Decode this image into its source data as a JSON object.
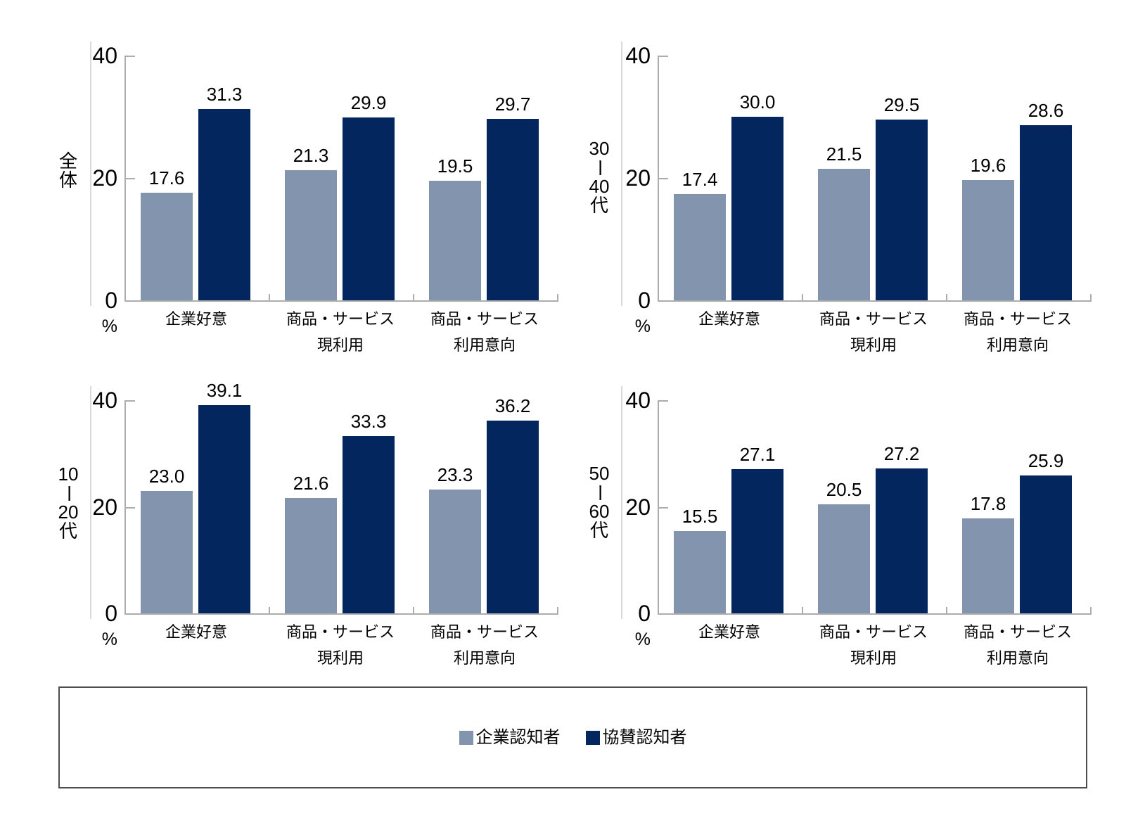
{
  "colors": {
    "series1": "#8394AE",
    "series2": "#03265E",
    "axis_line": "#ADADAD",
    "panel_edge": "#D9D9D9",
    "text": "#000000",
    "legend_border": "#4D4D4D",
    "background": "#FFFFFF"
  },
  "axis": {
    "unit_label": "%",
    "ylim": [
      0,
      40
    ],
    "ticks": [
      {
        "value": 40,
        "label": "40"
      },
      {
        "value": 20,
        "label": "20"
      },
      {
        "value": 0,
        "label": "0"
      }
    ]
  },
  "categories_lines": [
    [
      "企業好意"
    ],
    [
      "商品・サービス",
      "現利用"
    ],
    [
      "商品・サービス",
      "利用意向"
    ]
  ],
  "legend": {
    "position": "bottom",
    "items": [
      {
        "label": "企業認知者",
        "color_key": "series1"
      },
      {
        "label": "協賛認知者",
        "color_key": "series2"
      }
    ]
  },
  "chart_data": [
    {
      "type": "bar",
      "title": "全体",
      "title_lines": [
        "全",
        "体"
      ],
      "categories": [
        "企業好意",
        "商品・サービス 現利用",
        "商品・サービス 利用意向"
      ],
      "ylabel": "%",
      "ylim": [
        0,
        40
      ],
      "grid": false,
      "series": [
        {
          "name": "企業認知者",
          "values": [
            17.6,
            21.3,
            19.5
          ],
          "labels": [
            "17.6",
            "21.3",
            "19.5"
          ]
        },
        {
          "name": "協賛認知者",
          "values": [
            31.3,
            29.9,
            29.7
          ],
          "labels": [
            "31.3",
            "29.9",
            "29.7"
          ]
        }
      ]
    },
    {
      "type": "bar",
      "title": "30ー40代",
      "title_lines": [
        "30",
        "ー",
        "40",
        "代"
      ],
      "categories": [
        "企業好意",
        "商品・サービス 現利用",
        "商品・サービス 利用意向"
      ],
      "ylabel": "%",
      "ylim": [
        0,
        40
      ],
      "grid": false,
      "series": [
        {
          "name": "企業認知者",
          "values": [
            17.4,
            21.5,
            19.6
          ],
          "labels": [
            "17.4",
            "21.5",
            "19.6"
          ]
        },
        {
          "name": "協賛認知者",
          "values": [
            30.0,
            29.5,
            28.6
          ],
          "labels": [
            "30.0",
            "29.5",
            "28.6"
          ]
        }
      ]
    },
    {
      "type": "bar",
      "title": "10ー20代",
      "title_lines": [
        "10",
        "ー",
        "20",
        "代"
      ],
      "categories": [
        "企業好意",
        "商品・サービス 現利用",
        "商品・サービス 利用意向"
      ],
      "ylabel": "%",
      "ylim": [
        0,
        40
      ],
      "grid": false,
      "series": [
        {
          "name": "企業認知者",
          "values": [
            23.0,
            21.6,
            23.3
          ],
          "labels": [
            "23.0",
            "21.6",
            "23.3"
          ]
        },
        {
          "name": "協賛認知者",
          "values": [
            39.1,
            33.3,
            36.2
          ],
          "labels": [
            "39.1",
            "33.3",
            "36.2"
          ]
        }
      ]
    },
    {
      "type": "bar",
      "title": "50ー60代",
      "title_lines": [
        "50",
        "ー",
        "60",
        "代"
      ],
      "categories": [
        "企業好意",
        "商品・サービス 現利用",
        "商品・サービス 利用意向"
      ],
      "ylabel": "%",
      "ylim": [
        0,
        40
      ],
      "grid": false,
      "series": [
        {
          "name": "企業認知者",
          "values": [
            15.5,
            20.5,
            17.8
          ],
          "labels": [
            "15.5",
            "20.5",
            "17.8"
          ]
        },
        {
          "name": "協賛認知者",
          "values": [
            27.1,
            27.2,
            25.9
          ],
          "labels": [
            "27.1",
            "27.2",
            "25.9"
          ]
        }
      ]
    }
  ]
}
